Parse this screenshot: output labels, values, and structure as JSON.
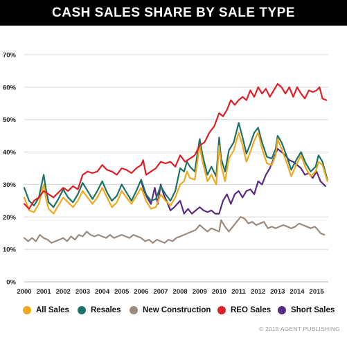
{
  "chart_data": {
    "type": "line",
    "title": "CASH SALES SHARE BY SALE TYPE",
    "xlabel": "",
    "ylabel": "",
    "x_start": 2000.0,
    "x_end": 2015.6,
    "xticks": [
      "2000",
      "2001",
      "2002",
      "2003",
      "2004",
      "2005",
      "2006",
      "2007",
      "2008",
      "2009",
      "2010",
      "2011",
      "2012",
      "2013",
      "2014",
      "2015"
    ],
    "ylim": [
      0,
      70
    ],
    "yticks": [
      "0%",
      "10%",
      "20%",
      "30%",
      "40%",
      "50%",
      "60%",
      "70%"
    ],
    "grid": "horizontal",
    "legend_position": "bottom",
    "series": [
      {
        "name": "All Sales",
        "color": "#f2a81d",
        "x": [
          2000.0,
          2000.25,
          2000.5,
          2000.75,
          2001.0,
          2001.1,
          2001.25,
          2001.5,
          2001.75,
          2002.0,
          2002.25,
          2002.5,
          2002.75,
          2003.0,
          2003.25,
          2003.5,
          2003.75,
          2004.0,
          2004.25,
          2004.5,
          2004.75,
          2005.0,
          2005.25,
          2005.5,
          2005.75,
          2006.0,
          2006.25,
          2006.5,
          2006.75,
          2007.0,
          2007.25,
          2007.5,
          2007.75,
          2008.0,
          2008.2,
          2008.35,
          2008.5,
          2008.75,
          2009.0,
          2009.15,
          2009.4,
          2009.6,
          2009.85,
          2010.0,
          2010.1,
          2010.3,
          2010.5,
          2010.75,
          2011.0,
          2011.2,
          2011.4,
          2011.6,
          2011.8,
          2012.0,
          2012.2,
          2012.45,
          2012.7,
          2012.9,
          2013.0,
          2013.2,
          2013.45,
          2013.7,
          2013.95,
          2014.2,
          2014.45,
          2014.7,
          2014.95,
          2015.1,
          2015.3,
          2015.55
        ],
        "y": [
          26,
          22,
          21.5,
          24,
          30,
          26,
          22.5,
          21,
          23.5,
          26,
          24.5,
          23,
          25,
          28,
          26,
          24,
          26,
          29,
          26,
          23,
          24.5,
          28,
          26,
          24,
          26.5,
          29,
          25,
          22.5,
          23,
          27,
          25,
          23.5,
          26,
          30,
          31,
          34,
          32,
          31.5,
          42,
          37,
          31,
          33,
          30,
          42,
          36,
          31,
          38,
          40.5,
          46,
          42,
          37,
          40,
          43.5,
          46,
          41,
          36.5,
          36,
          39,
          44,
          41,
          37,
          32.5,
          36,
          39,
          35,
          32.5,
          34,
          37,
          36,
          31
        ]
      },
      {
        "name": "Resales",
        "color": "#1c7267",
        "x": [
          2000.0,
          2000.25,
          2000.5,
          2000.75,
          2001.0,
          2001.1,
          2001.25,
          2001.5,
          2001.75,
          2002.0,
          2002.25,
          2002.5,
          2002.75,
          2003.0,
          2003.25,
          2003.5,
          2003.75,
          2004.0,
          2004.25,
          2004.5,
          2004.75,
          2005.0,
          2005.25,
          2005.5,
          2005.75,
          2006.0,
          2006.25,
          2006.5,
          2006.75,
          2007.0,
          2007.25,
          2007.5,
          2007.75,
          2008.0,
          2008.2,
          2008.35,
          2008.5,
          2008.75,
          2009.0,
          2009.15,
          2009.4,
          2009.6,
          2009.85,
          2010.0,
          2010.1,
          2010.3,
          2010.5,
          2010.75,
          2011.0,
          2011.2,
          2011.4,
          2011.6,
          2011.8,
          2012.0,
          2012.2,
          2012.45,
          2012.7,
          2012.9,
          2013.0,
          2013.2,
          2013.45,
          2013.7,
          2013.95,
          2014.2,
          2014.45,
          2014.7,
          2014.95,
          2015.1,
          2015.3,
          2015.55
        ],
        "y": [
          29,
          25,
          23.5,
          26,
          33,
          29,
          24.5,
          23,
          25.5,
          28.5,
          26,
          24.5,
          27,
          30.5,
          28,
          25.5,
          28,
          31,
          27.5,
          25,
          26.5,
          30,
          27.5,
          25,
          28,
          31.5,
          27,
          25,
          25.5,
          29.5,
          27,
          25,
          28,
          35,
          34,
          37,
          35.5,
          34,
          44,
          39,
          33,
          35.5,
          32.5,
          44.5,
          38,
          34,
          40.5,
          43,
          49,
          44.5,
          39.5,
          42.5,
          46,
          47.5,
          43,
          38.5,
          38,
          41,
          45,
          43,
          39,
          34.5,
          37.5,
          40,
          36.5,
          34,
          35.5,
          39,
          37,
          31.5
        ]
      },
      {
        "name": "New Construction",
        "color": "#9b8a7e",
        "x": [
          2000.0,
          2000.2,
          2000.4,
          2000.6,
          2000.8,
          2001.0,
          2001.2,
          2001.4,
          2001.6,
          2001.8,
          2002.0,
          2002.2,
          2002.4,
          2002.6,
          2002.8,
          2003.0,
          2003.2,
          2003.4,
          2003.6,
          2003.8,
          2004.0,
          2004.2,
          2004.4,
          2004.6,
          2004.8,
          2005.0,
          2005.2,
          2005.4,
          2005.6,
          2005.8,
          2006.0,
          2006.2,
          2006.4,
          2006.6,
          2006.8,
          2007.0,
          2007.2,
          2007.4,
          2007.6,
          2007.8,
          2008.0,
          2008.2,
          2008.4,
          2008.6,
          2008.8,
          2009.0,
          2009.2,
          2009.4,
          2009.6,
          2009.8,
          2010.0,
          2010.1,
          2010.3,
          2010.5,
          2010.7,
          2010.9,
          2011.1,
          2011.3,
          2011.5,
          2011.7,
          2011.9,
          2012.1,
          2012.3,
          2012.5,
          2012.7,
          2012.9,
          2013.1,
          2013.3,
          2013.5,
          2013.7,
          2013.9,
          2014.1,
          2014.3,
          2014.5,
          2014.7,
          2014.9,
          2015.0,
          2015.2,
          2015.4
        ],
        "y": [
          13.5,
          12.5,
          13.5,
          12.5,
          14.5,
          13.5,
          13,
          12,
          12.5,
          13,
          13.5,
          12.5,
          14,
          13,
          14.5,
          14,
          15.5,
          14.5,
          14,
          14.5,
          14,
          13.5,
          14.5,
          13.5,
          14,
          14.5,
          14,
          13.5,
          14.5,
          14,
          13.5,
          12.5,
          13,
          12,
          13,
          12.5,
          12,
          13,
          12.5,
          13.5,
          14,
          14.5,
          15,
          15.5,
          16,
          17.5,
          16.5,
          15.5,
          16.5,
          16,
          15.5,
          19,
          17,
          15.5,
          17,
          18.5,
          20,
          19.5,
          18,
          18.5,
          17.5,
          18,
          18.5,
          16.5,
          17,
          16.5,
          17,
          17.5,
          17,
          16.5,
          17,
          18,
          17.5,
          17,
          16.5,
          17,
          16.5,
          15,
          14.5
        ]
      },
      {
        "name": "REO Sales",
        "color": "#dd1f26",
        "x": [
          2000.0,
          2000.25,
          2000.5,
          2000.75,
          2001.0,
          2001.25,
          2001.5,
          2001.75,
          2002.0,
          2002.25,
          2002.5,
          2002.75,
          2003.0,
          2003.25,
          2003.5,
          2003.75,
          2004.0,
          2004.25,
          2004.5,
          2004.75,
          2005.0,
          2005.25,
          2005.5,
          2005.75,
          2006.0,
          2006.1,
          2006.25,
          2006.5,
          2006.75,
          2007.0,
          2007.25,
          2007.5,
          2007.75,
          2008.0,
          2008.25,
          2008.5,
          2008.75,
          2009.0,
          2009.25,
          2009.5,
          2009.75,
          2010.0,
          2010.2,
          2010.4,
          2010.6,
          2010.8,
          2011.0,
          2011.2,
          2011.4,
          2011.6,
          2011.8,
          2012.0,
          2012.2,
          2012.4,
          2012.6,
          2012.8,
          2013.0,
          2013.2,
          2013.4,
          2013.6,
          2013.8,
          2014.0,
          2014.2,
          2014.4,
          2014.6,
          2014.8,
          2015.0,
          2015.15,
          2015.3,
          2015.5
        ],
        "y": [
          24,
          22.5,
          25,
          26,
          28,
          27,
          26,
          27.5,
          29,
          28,
          29.5,
          28.5,
          33,
          34,
          33.5,
          34,
          36,
          34.5,
          34,
          33,
          35,
          34.5,
          33.5,
          35,
          36,
          37.5,
          33,
          34,
          35,
          37,
          36.5,
          37,
          35.5,
          39,
          37,
          38,
          39,
          42,
          43,
          46,
          48,
          52,
          51,
          53,
          56,
          54.5,
          56,
          57,
          56,
          59,
          57,
          60,
          58,
          59.5,
          57,
          59,
          61,
          60,
          58,
          60,
          57,
          60,
          58,
          56.5,
          59,
          58.5,
          59,
          60,
          56.5,
          56
        ]
      },
      {
        "name": "Short Sales",
        "color": "#582c83",
        "x": [
          2006.0,
          2006.15,
          2006.3,
          2006.5,
          2006.7,
          2006.85,
          2007.0,
          2007.15,
          2007.3,
          2007.5,
          2007.7,
          2007.85,
          2008.0,
          2008.2,
          2008.4,
          2008.6,
          2008.8,
          2009.0,
          2009.2,
          2009.4,
          2009.6,
          2009.8,
          2010.0,
          2010.2,
          2010.4,
          2010.6,
          2010.8,
          2011.0,
          2011.2,
          2011.4,
          2011.6,
          2011.8,
          2012.0,
          2012.2,
          2012.4,
          2012.6,
          2012.8,
          2013.0,
          2013.2,
          2013.4,
          2013.6,
          2013.8,
          2014.0,
          2014.2,
          2014.4,
          2014.6,
          2014.8,
          2015.0,
          2015.2,
          2015.45
        ],
        "y": [
          31,
          28,
          26,
          24,
          29,
          24,
          30,
          27,
          25,
          22,
          23,
          24,
          25,
          21,
          22.5,
          21,
          22,
          23,
          22,
          21.5,
          22,
          21,
          21,
          25,
          27,
          24,
          27,
          28,
          26,
          28,
          28.5,
          27,
          31,
          30,
          33,
          35,
          38,
          41,
          40,
          39,
          37.5,
          37,
          36,
          35,
          33,
          33.5,
          32,
          34,
          31,
          29.5
        ]
      }
    ],
    "legend": [
      "All Sales",
      "Resales",
      "New Construction",
      "REO Sales",
      "Short Sales"
    ]
  },
  "copyright": "© 2015 AGENT PUBLISHING",
  "colors": {
    "title_bar": "#000000",
    "grid": "#d6d6d6",
    "axis_text": "#222222"
  }
}
